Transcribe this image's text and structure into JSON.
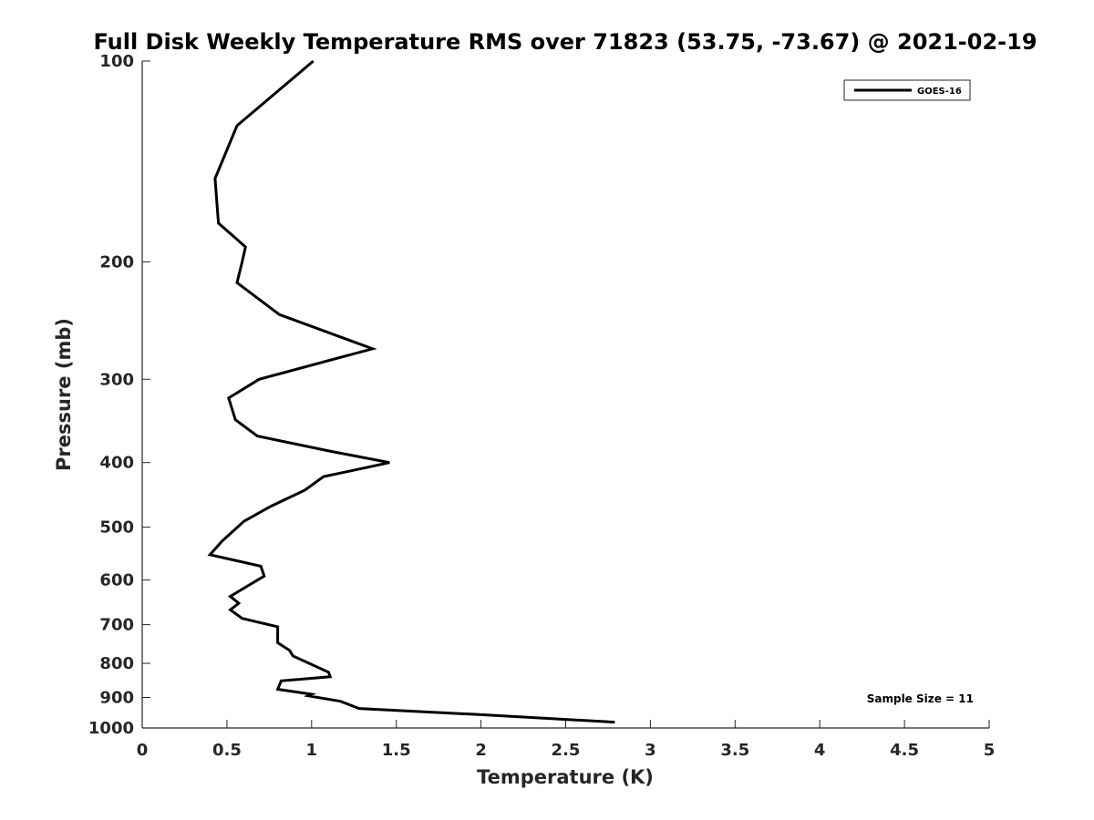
{
  "chart_data": {
    "type": "line",
    "title": "Full Disk Weekly Temperature RMS over 71823 (53.75, -73.67) @ 2021-02-19",
    "xlabel": "Temperature (K)",
    "ylabel": "Pressure (mb)",
    "xlim": [
      0,
      5
    ],
    "ylim": [
      100,
      1000
    ],
    "y_scale": "log",
    "y_reversed": true,
    "x_ticks": [
      "0",
      "0.5",
      "1",
      "1.5",
      "2",
      "2.5",
      "3",
      "3.5",
      "4",
      "4.5",
      "5"
    ],
    "y_ticks": [
      "100",
      "200",
      "300",
      "400",
      "500",
      "600",
      "700",
      "800",
      "900",
      "1000"
    ],
    "grid": false,
    "legend": {
      "position": "top-right",
      "entries": [
        "GOES-16"
      ]
    },
    "annotations": [
      "Sample Size = 11"
    ],
    "series": [
      {
        "name": "GOES-16",
        "color": "#000000",
        "x": [
          1.01,
          0.56,
          0.43,
          0.45,
          0.61,
          0.59,
          0.56,
          0.81,
          1.36,
          0.69,
          0.51,
          0.55,
          0.68,
          1.12,
          1.46,
          1.07,
          0.96,
          0.76,
          0.6,
          0.47,
          0.4,
          0.7,
          0.72,
          0.61,
          0.52,
          0.57,
          0.52,
          0.59,
          0.8,
          0.8,
          0.87,
          0.89,
          1.1,
          1.11,
          0.82,
          0.8,
          1.0,
          0.98,
          1.17,
          1.28,
          2.0,
          2.79
        ],
        "y": [
          100,
          125,
          150,
          175,
          190,
          200,
          215,
          240,
          270,
          300,
          320,
          345,
          365,
          385,
          400,
          420,
          440,
          465,
          490,
          525,
          550,
          572,
          592,
          615,
          635,
          650,
          665,
          685,
          705,
          745,
          765,
          780,
          825,
          838,
          850,
          875,
          890,
          895,
          912,
          935,
          955,
          980
        ]
      }
    ]
  }
}
